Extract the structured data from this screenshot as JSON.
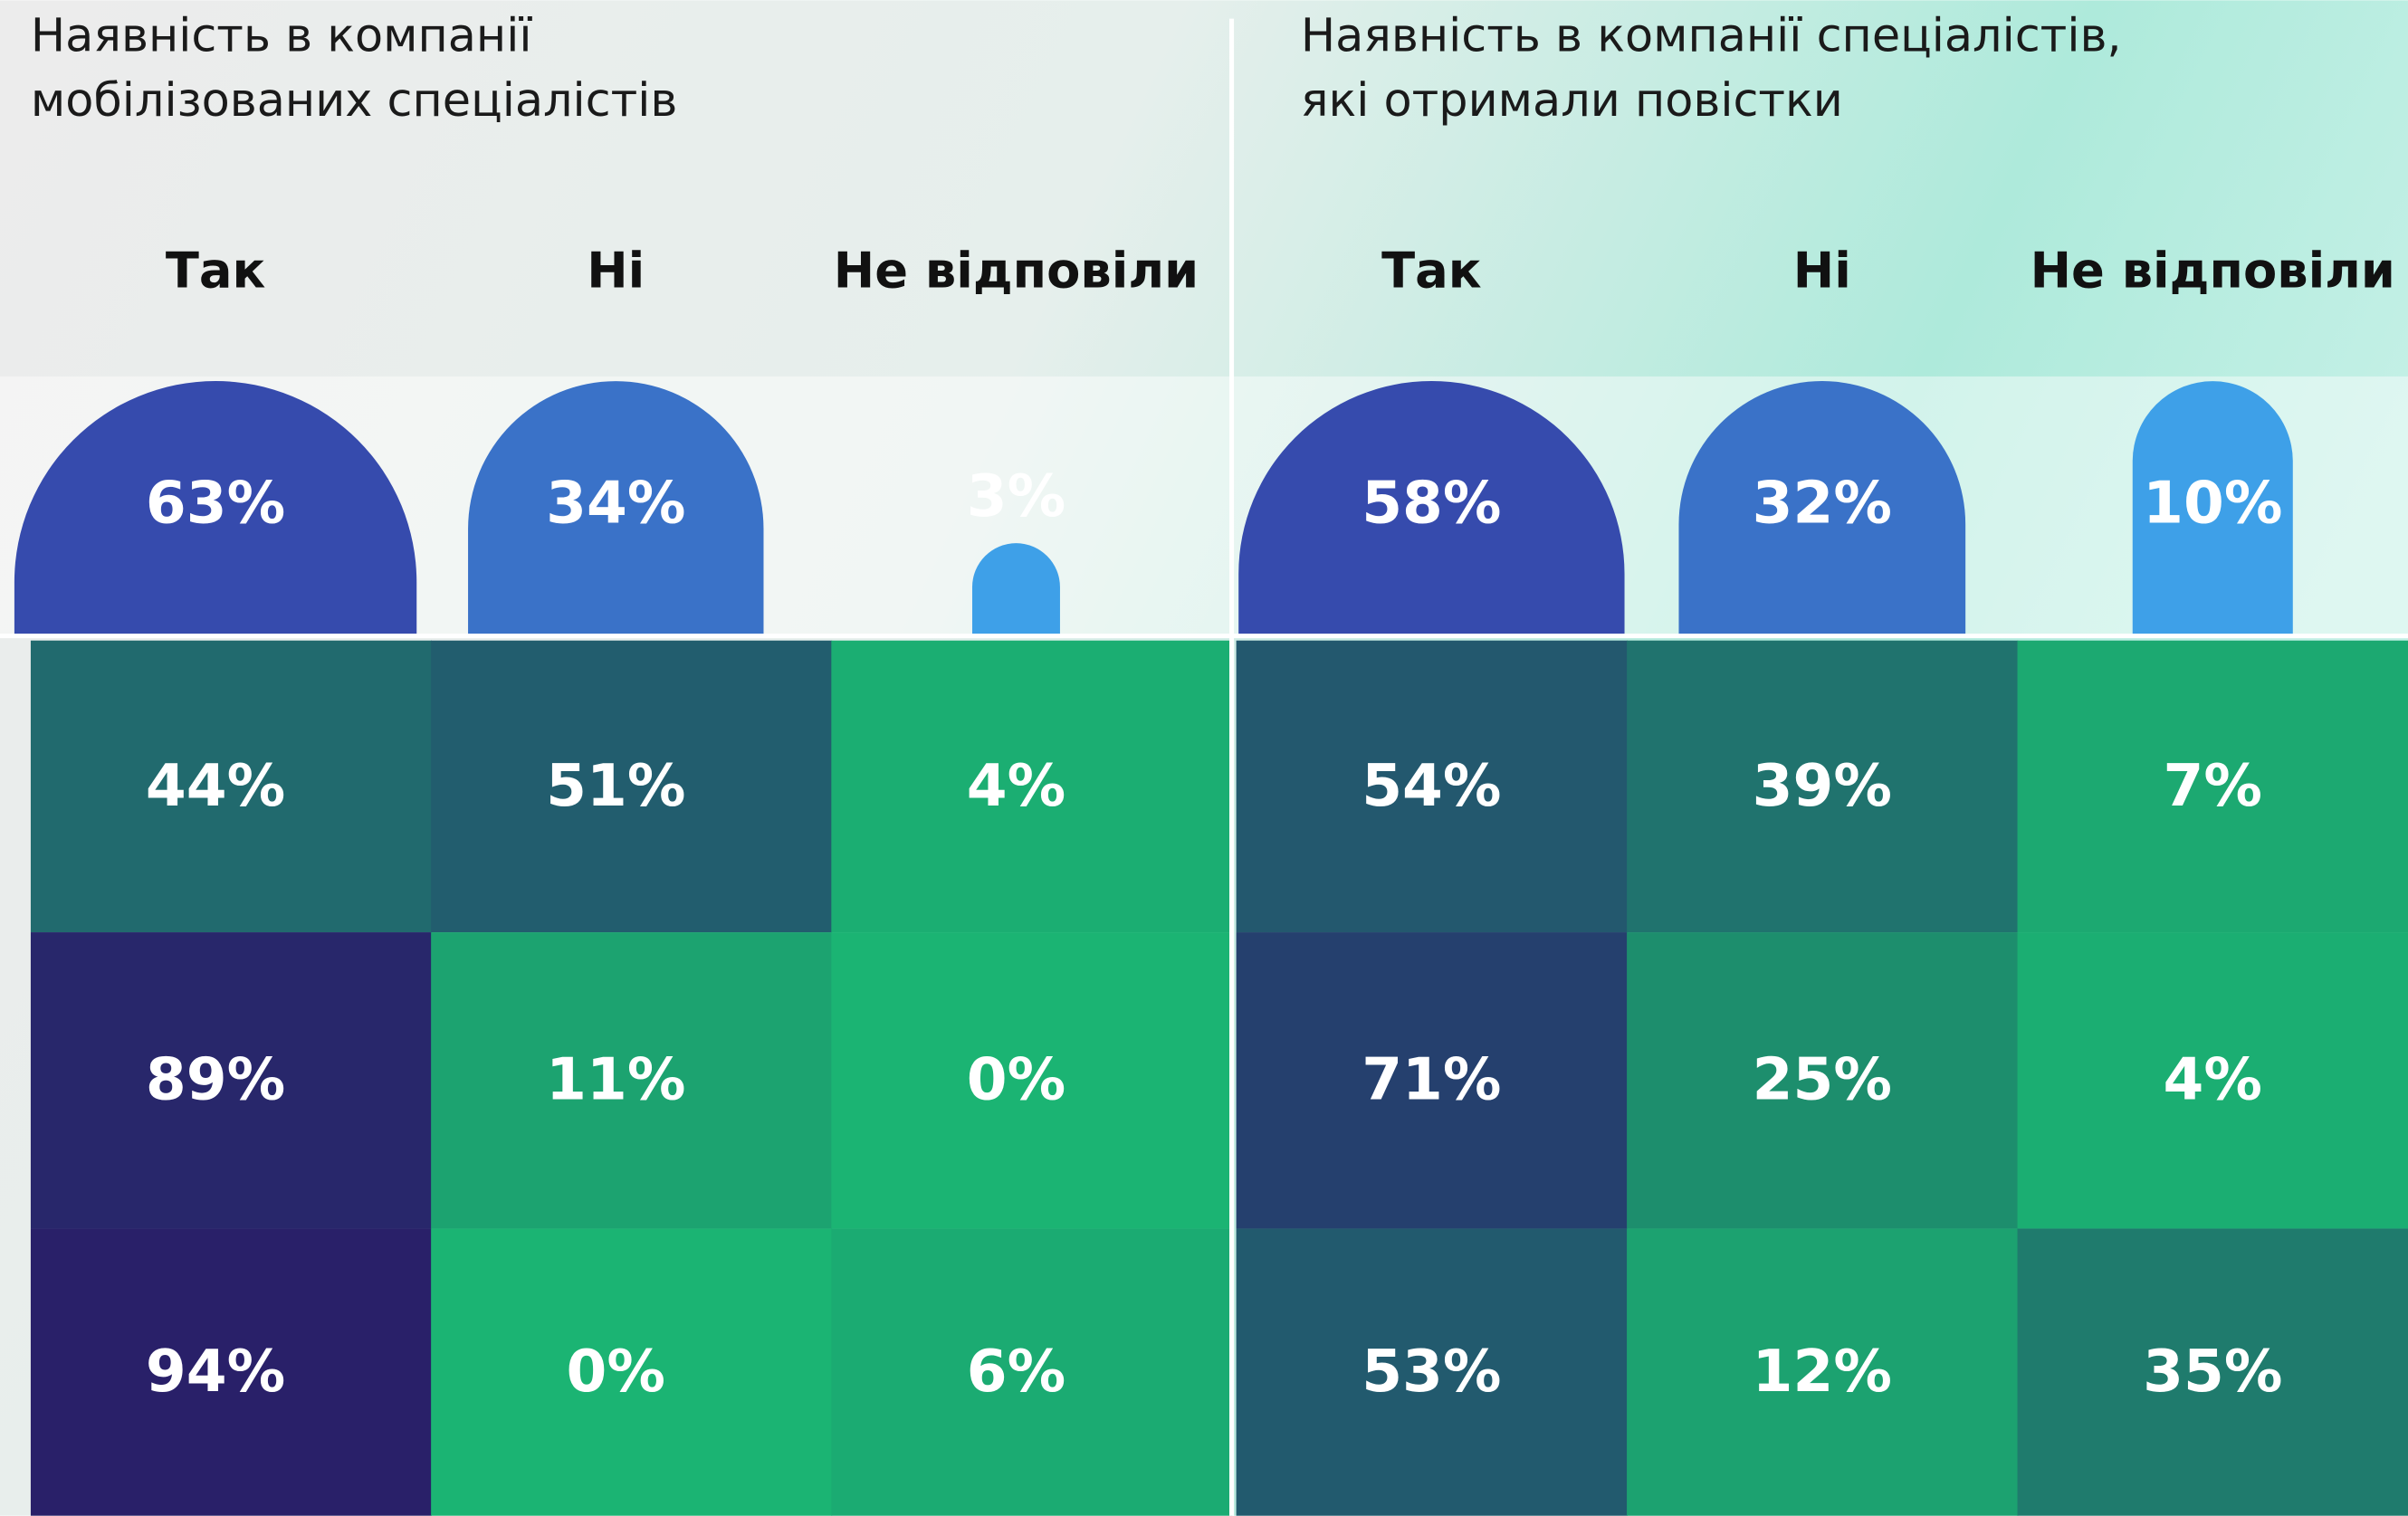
{
  "chart_data": [
    {
      "type": "bar",
      "title": [
        "Наявність в компанії",
        "мобілізованих спеціалістів"
      ],
      "categories": [
        "Так",
        "Ні",
        "Не відповіли"
      ],
      "values": [
        63,
        34,
        3
      ],
      "value_labels": [
        "63%",
        "34%",
        "3%"
      ],
      "colors": [
        "#364bad",
        "#3a72c8",
        "#3ea0e8"
      ],
      "heatmap": {
        "values": [
          [
            44,
            51,
            4
          ],
          [
            89,
            11,
            0
          ],
          [
            94,
            0,
            6
          ]
        ],
        "value_labels": [
          [
            "44%",
            "51%",
            "4%"
          ],
          [
            "89%",
            "11%",
            "0%"
          ],
          [
            "94%",
            "0%",
            "6%"
          ]
        ]
      },
      "colorscale": [
        "#1bb473",
        "#1d8e6d",
        "#225e6e",
        "#263a6e",
        "#2a1868"
      ]
    },
    {
      "type": "bar",
      "title": [
        "Наявність в компанії спеціалістів,",
        "які отримали повістки"
      ],
      "categories": [
        "Так",
        "Ні",
        "Не відповіли"
      ],
      "values": [
        58,
        32,
        10
      ],
      "value_labels": [
        "58%",
        "32%",
        "10%"
      ],
      "colors": [
        "#364bad",
        "#3a72c8",
        "#3ea0e8"
      ],
      "heatmap": {
        "values": [
          [
            54,
            39,
            7
          ],
          [
            71,
            25,
            4
          ],
          [
            53,
            12,
            35
          ]
        ],
        "value_labels": [
          [
            "54%",
            "39%",
            "7%"
          ],
          [
            "71%",
            "25%",
            "4%"
          ],
          [
            "53%",
            "12%",
            "35%"
          ]
        ]
      },
      "colorscale": [
        "#1bb473",
        "#1d8e6d",
        "#225e6e",
        "#263a6e",
        "#2a1868"
      ]
    }
  ]
}
